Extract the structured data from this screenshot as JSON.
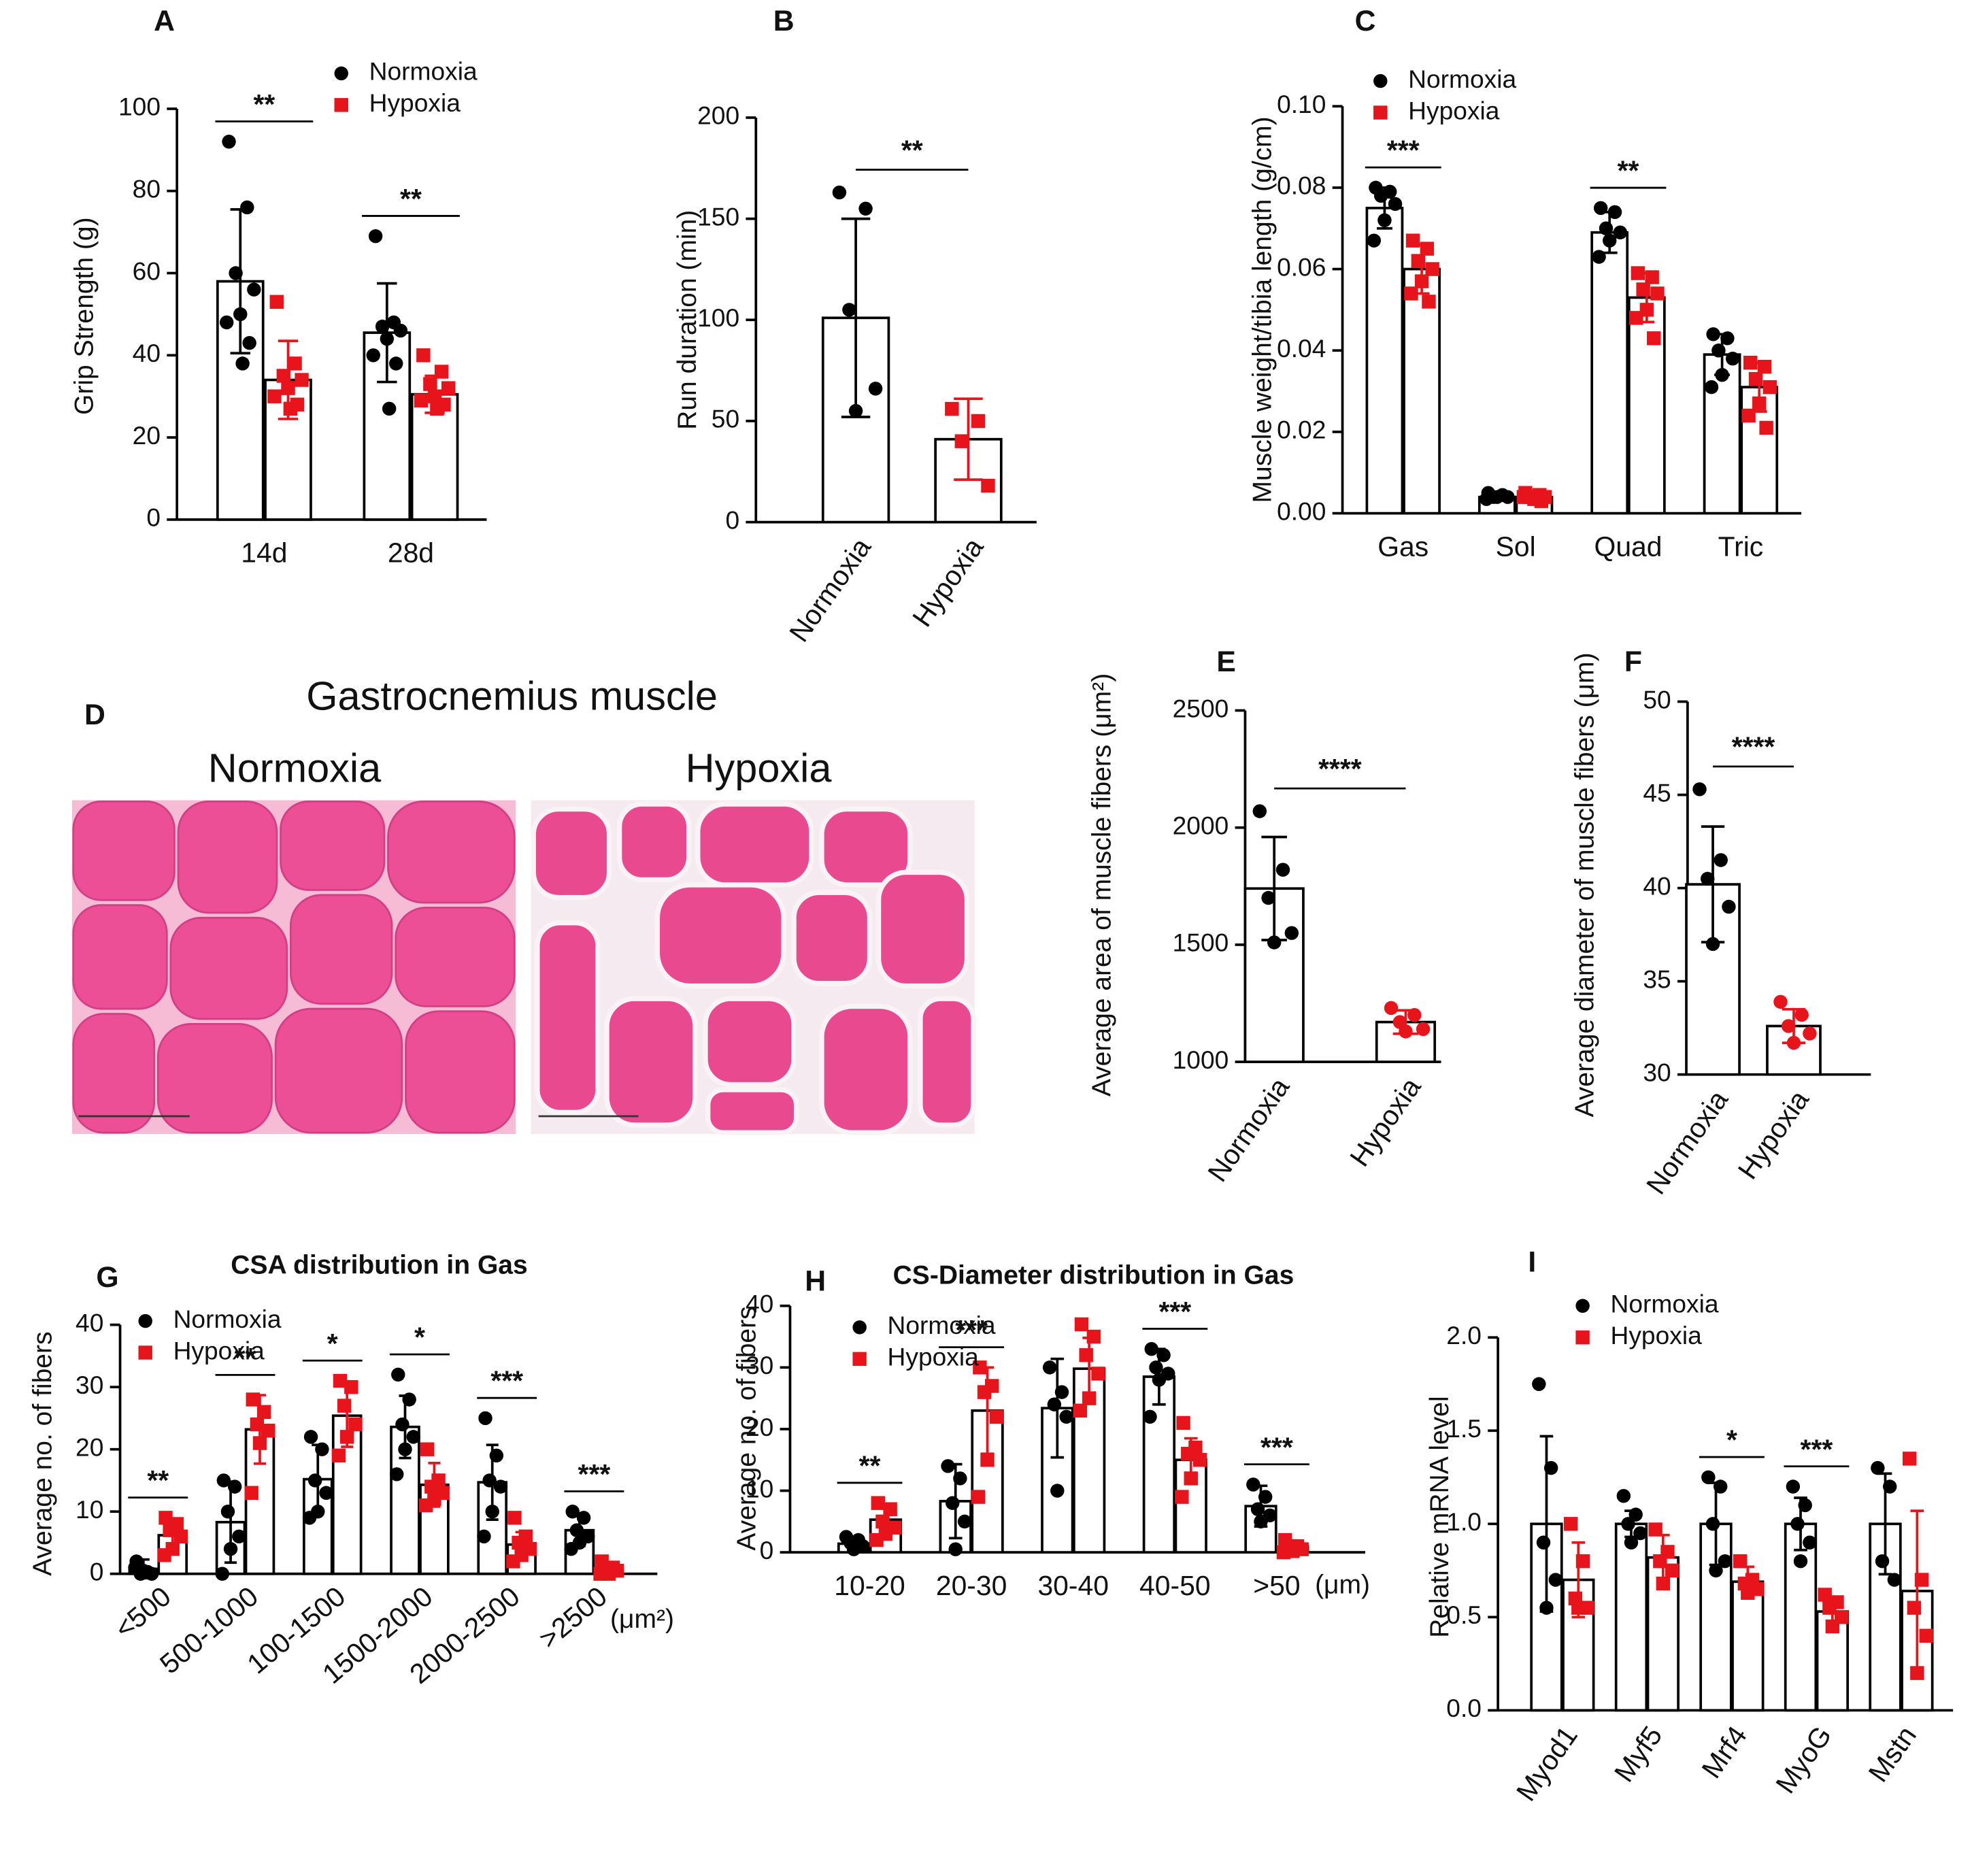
{
  "chart_data": [
    {
      "type": "bar",
      "panel": "A",
      "ylabel": "Grip Strength (g)",
      "categories": [
        "14d",
        "28d"
      ],
      "series": [
        {
          "name": "Normoxia",
          "color": "#000000",
          "marker": "circle",
          "values": [
            58,
            45.5
          ],
          "errors": [
            17.5,
            12
          ],
          "points": [
            [
              92,
              76,
              60,
              56,
              50,
              48,
              43,
              38
            ],
            [
              69,
              48,
              47,
              46,
              44,
              40,
              38,
              27
            ]
          ]
        },
        {
          "name": "Hypoxia",
          "color": "#e8141b",
          "marker": "square",
          "values": [
            34,
            30.5
          ],
          "errors": [
            9.5,
            4.5
          ],
          "points": [
            [
              53,
              38,
              35,
              34,
              32,
              30,
              28,
              27
            ],
            [
              40,
              36,
              33,
              32,
              30,
              29,
              28,
              27
            ]
          ]
        }
      ],
      "ylim": [
        0,
        100
      ],
      "yticks": [
        0,
        20,
        40,
        60,
        80,
        100
      ],
      "significance": [
        "**",
        "**"
      ]
    },
    {
      "type": "bar",
      "panel": "B",
      "ylabel": "Run duration (min)",
      "categories": [
        "Normoxia",
        "Hypoxia"
      ],
      "values": [
        101,
        41
      ],
      "errors": [
        49,
        20
      ],
      "points": [
        [
          163,
          155,
          105,
          66,
          55
        ],
        [
          56,
          50,
          40,
          18
        ]
      ],
      "colors": [
        "#000000",
        "#e8141b"
      ],
      "markers": [
        "circle",
        "square"
      ],
      "ylim": [
        0,
        200
      ],
      "yticks": [
        0,
        50,
        100,
        150,
        200
      ],
      "significance": "**"
    },
    {
      "type": "bar",
      "panel": "C",
      "ylabel": "Muscle weight/tibia length (g/cm)",
      "categories": [
        "Gas",
        "Sol",
        "Quad",
        "Tric"
      ],
      "series": [
        {
          "name": "Normoxia",
          "color": "#000000",
          "marker": "circle",
          "values": [
            0.075,
            0.004,
            0.069,
            0.039
          ],
          "errors": [
            0.005,
            0.0005,
            0.005,
            0.005
          ],
          "points": [
            [
              0.08,
              0.079,
              0.078,
              0.076,
              0.072,
              0.067
            ],
            [
              0.005,
              0.0045,
              0.004,
              0.004,
              0.004,
              0.0035
            ],
            [
              0.075,
              0.074,
              0.07,
              0.069,
              0.067,
              0.063
            ],
            [
              0.044,
              0.043,
              0.04,
              0.038,
              0.034,
              0.031
            ]
          ]
        },
        {
          "name": "Hypoxia",
          "color": "#e8141b",
          "marker": "square",
          "values": [
            0.06,
            0.004,
            0.053,
            0.031
          ],
          "errors": [
            0.006,
            0.0007,
            0.006,
            0.006
          ],
          "points": [
            [
              0.067,
              0.065,
              0.062,
              0.06,
              0.057,
              0.054,
              0.052
            ],
            [
              0.005,
              0.0045,
              0.004,
              0.004,
              0.0035,
              0.004,
              0.003
            ],
            [
              0.059,
              0.058,
              0.055,
              0.054,
              0.05,
              0.048,
              0.043
            ],
            [
              0.037,
              0.036,
              0.033,
              0.031,
              0.027,
              0.024,
              0.021
            ]
          ]
        }
      ],
      "ylim": [
        0,
        0.1
      ],
      "yticks": [
        {
          "value": 0,
          "label": "0.00"
        },
        {
          "value": 0.02,
          "label": "0.02"
        },
        {
          "value": 0.04,
          "label": "0.04"
        },
        {
          "value": 0.06,
          "label": "0.06"
        },
        {
          "value": 0.08,
          "label": "0.08"
        },
        {
          "value": 0.1,
          "label": "0.10"
        }
      ],
      "significance": [
        "***",
        null,
        "**",
        null
      ]
    },
    {
      "type": "image",
      "panel": "D",
      "title": "Gastrocnemius muscle",
      "labels": [
        "Normoxia",
        "Hypoxia"
      ]
    },
    {
      "type": "bar",
      "panel": "E",
      "ylabel": "Average area  of muscle fibers (μm²)",
      "categories": [
        "Normoxia",
        "Hypoxia"
      ],
      "values": [
        1740,
        1170
      ],
      "errors": [
        220,
        50
      ],
      "points": [
        [
          2070,
          1820,
          1700,
          1550,
          1510
        ],
        [
          1230,
          1200,
          1170,
          1140,
          1130
        ]
      ],
      "colors": [
        "#000000",
        "#e8141b"
      ],
      "markers": [
        "circle",
        "circle"
      ],
      "ylim": [
        1000,
        2500
      ],
      "yticks": [
        1000,
        1500,
        2000,
        2500
      ],
      "significance": "****"
    },
    {
      "type": "bar",
      "panel": "F",
      "ylabel": "Average diameter  of muscle fibers (μm)",
      "categories": [
        "Normoxia",
        "Hypoxia"
      ],
      "values": [
        40.2,
        32.6
      ],
      "errors": [
        3.1,
        0.9
      ],
      "points": [
        [
          45.3,
          41.5,
          40.5,
          39,
          37
        ],
        [
          33.9,
          33.2,
          32.6,
          32.2,
          31.7
        ]
      ],
      "colors": [
        "#000000",
        "#e8141b"
      ],
      "markers": [
        "circle",
        "circle"
      ],
      "ylim": [
        30,
        50
      ],
      "yticks": [
        30,
        35,
        40,
        45,
        50
      ],
      "significance": "****"
    },
    {
      "type": "bar",
      "panel": "G",
      "title": "CSA distribution in Gas",
      "ylabel": "Average no. of fibers",
      "xunit": "(μm²)",
      "categories": [
        "<500",
        "500-1000",
        "100-1500",
        "1500-2000",
        "2000-2500",
        ">2500"
      ],
      "series": [
        {
          "name": "Normoxia",
          "color": "#000000",
          "marker": "circle",
          "values": [
            0.8,
            8.3,
            15.2,
            23.6,
            14.7,
            7
          ],
          "errors": [
            1.5,
            6.5,
            5.5,
            5,
            6,
            2.5
          ],
          "points": [
            [
              2,
              0.3,
              0,
              0,
              0.5,
              1
            ],
            [
              15,
              14,
              10,
              6,
              4,
              0
            ],
            [
              22,
              20,
              15,
              13,
              10,
              9
            ],
            [
              32,
              28,
              24,
              22,
              20,
              16
            ],
            [
              25,
              19,
              15,
              14,
              10,
              6
            ],
            [
              10,
              9,
              7,
              6,
              5,
              4
            ]
          ]
        },
        {
          "name": "Hypoxia",
          "color": "#e8141b",
          "marker": "square",
          "values": [
            6.2,
            23.2,
            25.4,
            14.3,
            4.7,
            0.8
          ],
          "errors": [
            2,
            5.5,
            5,
            3.5,
            2,
            0.7
          ],
          "points": [
            [
              9,
              8,
              7,
              6,
              4,
              3
            ],
            [
              28,
              26,
              24,
              23,
              21,
              13
            ],
            [
              31,
              30,
              27,
              24,
              22,
              19
            ],
            [
              20,
              15,
              14,
              13,
              12,
              11
            ],
            [
              9,
              6,
              5,
              4,
              3,
              2
            ],
            [
              2,
              1,
              1,
              0.5,
              0,
              0
            ]
          ]
        }
      ],
      "ylim": [
        0,
        40
      ],
      "yticks": [
        0,
        10,
        20,
        30,
        40
      ],
      "significance": [
        "**",
        "**",
        "*",
        "*",
        "***",
        "***"
      ]
    },
    {
      "type": "bar",
      "panel": "H",
      "title": "CS-Diameter distribution in Gas",
      "ylabel": "Average no. of fibers",
      "xunit": "(μm)",
      "categories": [
        "10-20",
        "20-30",
        "30-40",
        "40-50",
        ">50"
      ],
      "series": [
        {
          "name": "Normoxia",
          "color": "#000000",
          "marker": "circle",
          "values": [
            1.4,
            8.3,
            23.4,
            28.5,
            7.5
          ],
          "errors": [
            1,
            6,
            8,
            4.5,
            3.3
          ],
          "points": [
            [
              2.5,
              2,
              1.5,
              1,
              0.5
            ],
            [
              14,
              12,
              8,
              5,
              0.5
            ],
            [
              30,
              26,
              24,
              22,
              10
            ],
            [
              33,
              32,
              30,
              29,
              28,
              22
            ],
            [
              11,
              9,
              7,
              6,
              5
            ]
          ]
        },
        {
          "name": "Hypoxia",
          "color": "#e8141b",
          "marker": "square",
          "values": [
            5.3,
            23,
            29.8,
            15,
            0.9
          ],
          "errors": [
            2,
            7,
            5,
            3.5,
            0.8
          ],
          "points": [
            [
              8,
              7,
              5,
              4,
              3,
              2
            ],
            [
              30,
              27,
              26,
              22,
              15,
              9
            ],
            [
              37,
              35,
              32,
              29,
              25,
              23
            ],
            [
              21,
              17,
              16,
              15,
              12,
              9
            ],
            [
              2,
              1,
              1,
              0.5,
              0.2,
              0
            ]
          ]
        }
      ],
      "ylim": [
        0,
        40
      ],
      "yticks": [
        0,
        10,
        20,
        30,
        40
      ],
      "significance": [
        "**",
        "***",
        null,
        "***",
        "***"
      ]
    },
    {
      "type": "bar",
      "panel": "I",
      "ylabel": "Relative  mRNA level",
      "categories": [
        "Myod1",
        "Myf5",
        "Mrf4",
        "MyoG",
        "Mstn"
      ],
      "series": [
        {
          "name": "Normoxia",
          "color": "#000000",
          "marker": "circle",
          "values": [
            1.0,
            1.0,
            1.0,
            1.0,
            1.0
          ],
          "errors": [
            0.47,
            0.07,
            0.22,
            0.14,
            0.27
          ],
          "points": [
            [
              1.75,
              1.3,
              0.9,
              0.7,
              0.55
            ],
            [
              1.15,
              1.05,
              1.0,
              0.95,
              0.9
            ],
            [
              1.25,
              1.2,
              1.0,
              0.8,
              0.75
            ],
            [
              1.2,
              1.1,
              1.0,
              0.9,
              0.8
            ],
            [
              1.3,
              1.2,
              0.8,
              0.7
            ]
          ]
        },
        {
          "name": "Hypoxia",
          "color": "#e8141b",
          "marker": "square",
          "values": [
            0.7,
            0.82,
            0.69,
            0.53,
            0.64
          ],
          "errors": [
            0.2,
            0.12,
            0.08,
            0.07,
            0.43
          ],
          "points": [
            [
              1.0,
              0.8,
              0.6,
              0.55,
              0.55
            ],
            [
              0.97,
              0.85,
              0.8,
              0.75,
              0.68
            ],
            [
              0.8,
              0.7,
              0.68,
              0.65,
              0.63
            ],
            [
              0.62,
              0.58,
              0.55,
              0.5,
              0.45
            ],
            [
              1.35,
              0.7,
              0.55,
              0.4,
              0.2
            ]
          ]
        }
      ],
      "ylim": [
        0,
        2
      ],
      "yticks": [
        {
          "value": 0,
          "label": "0.0"
        },
        {
          "value": 0.5,
          "label": "0.5"
        },
        {
          "value": 1,
          "label": "1.0"
        },
        {
          "value": 1.5,
          "label": "1.5"
        },
        {
          "value": 2,
          "label": "2.0"
        }
      ],
      "significance": [
        null,
        null,
        "*",
        "***",
        null
      ]
    }
  ]
}
